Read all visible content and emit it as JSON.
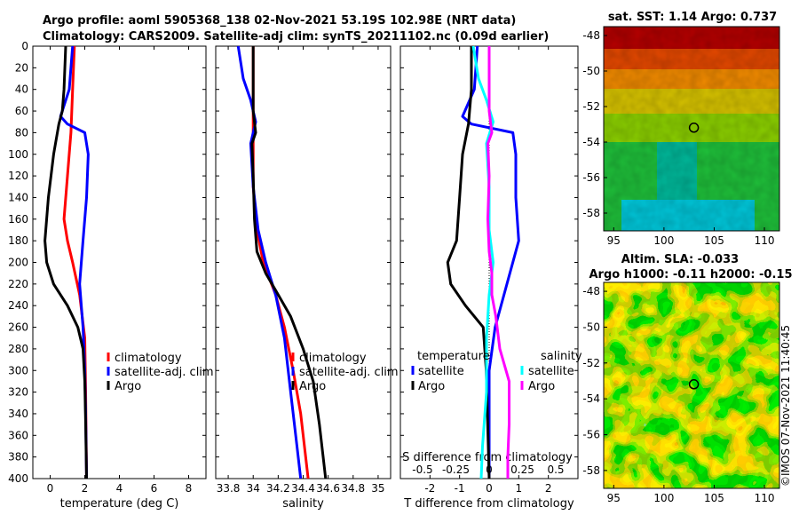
{
  "title": {
    "line1": "Argo profile: aoml 5905368_138 02-Nov-2021 53.19S 102.98E (NRT data)",
    "line2": "Climatology: CARS2009. Satellite-adj clim: synTS_20211102.nc (0.09d earlier)"
  },
  "colors": {
    "climatology": "#ff0000",
    "satellite": "#0000ff",
    "argo": "#000000",
    "salinity_diff": "#ff00ff",
    "salinity_satellite": "#00ffff"
  },
  "chart_data": [
    {
      "type": "line",
      "name": "temperature-profile",
      "xlabel": "temperature (deg C)",
      "ylabel": "",
      "xlim": [
        -1,
        9
      ],
      "ylim": [
        400,
        0
      ],
      "xticks": [
        0,
        2,
        4,
        6,
        8
      ],
      "xtick_labels": [
        "0",
        "2",
        "4",
        "6",
        "8"
      ],
      "yticks": [
        0,
        20,
        40,
        60,
        80,
        100,
        120,
        140,
        160,
        180,
        200,
        220,
        240,
        260,
        280,
        300,
        320,
        340,
        360,
        380,
        400
      ],
      "ytick_labels": [
        "0",
        "20",
        "40",
        "60",
        "80",
        "100",
        "120",
        "140",
        "160",
        "180",
        "200",
        "220",
        "240",
        "260",
        "280",
        "300",
        "320",
        "340",
        "360",
        "380",
        "400"
      ],
      "legend": [
        "climatology",
        "satellite-adj. clim",
        "Argo"
      ],
      "series": [
        {
          "name": "climatology",
          "color": "#ff0000",
          "points": [
            [
              1.4,
              0
            ],
            [
              1.3,
              40
            ],
            [
              1.2,
              80
            ],
            [
              1.0,
              120
            ],
            [
              0.8,
              160
            ],
            [
              1.0,
              180
            ],
            [
              1.3,
              200
            ],
            [
              1.7,
              230
            ],
            [
              2.0,
              270
            ],
            [
              2.05,
              320
            ],
            [
              2.1,
              400
            ]
          ]
        },
        {
          "name": "satellite-adj. clim",
          "color": "#0000ff",
          "points": [
            [
              1.3,
              0
            ],
            [
              1.1,
              40
            ],
            [
              0.6,
              65
            ],
            [
              1.0,
              72
            ],
            [
              2.0,
              80
            ],
            [
              2.2,
              100
            ],
            [
              2.1,
              140
            ],
            [
              1.9,
              180
            ],
            [
              1.7,
              220
            ],
            [
              1.9,
              260
            ],
            [
              2.0,
              300
            ],
            [
              2.05,
              340
            ],
            [
              2.1,
              400
            ]
          ]
        },
        {
          "name": "Argo",
          "color": "#000000",
          "points": [
            [
              0.9,
              0
            ],
            [
              0.8,
              40
            ],
            [
              0.7,
              60
            ],
            [
              0.5,
              72
            ],
            [
              0.2,
              100
            ],
            [
              -0.1,
              140
            ],
            [
              -0.3,
              180
            ],
            [
              -0.2,
              200
            ],
            [
              0.2,
              220
            ],
            [
              1.0,
              240
            ],
            [
              1.6,
              260
            ],
            [
              1.9,
              280
            ],
            [
              2.0,
              310
            ],
            [
              2.05,
              350
            ],
            [
              2.1,
              400
            ]
          ]
        }
      ]
    },
    {
      "type": "line",
      "name": "salinity-profile",
      "xlabel": "salinity",
      "ylabel": "",
      "xlim": [
        33.7,
        35.1
      ],
      "ylim": [
        400,
        0
      ],
      "xticks": [
        33.8,
        34.0,
        34.2,
        34.4,
        34.6,
        34.8,
        35.0
      ],
      "xtick_labels": [
        "33.8",
        "34",
        "34.2",
        "34.4",
        "34.6",
        "34.8",
        "35"
      ],
      "legend": [
        "climatology",
        "satellite-adj. clim",
        "Argo"
      ],
      "series": [
        {
          "name": "climatology",
          "color": "#ff0000",
          "points": [
            [
              34.0,
              0
            ],
            [
              34.0,
              80
            ],
            [
              34.0,
              130
            ],
            [
              34.03,
              170
            ],
            [
              34.08,
              200
            ],
            [
              34.18,
              230
            ],
            [
              34.25,
              260
            ],
            [
              34.32,
              300
            ],
            [
              34.38,
              340
            ],
            [
              34.42,
              380
            ],
            [
              34.44,
              400
            ]
          ]
        },
        {
          "name": "satellite-adj. clim",
          "color": "#0000ff",
          "points": [
            [
              33.88,
              0
            ],
            [
              33.92,
              30
            ],
            [
              33.98,
              50
            ],
            [
              34.02,
              70
            ],
            [
              33.98,
              90
            ],
            [
              34.0,
              130
            ],
            [
              34.04,
              170
            ],
            [
              34.1,
              200
            ],
            [
              34.18,
              230
            ],
            [
              34.25,
              270
            ],
            [
              34.3,
              320
            ],
            [
              34.35,
              370
            ],
            [
              34.38,
              400
            ]
          ]
        },
        {
          "name": "Argo",
          "color": "#000000",
          "points": [
            [
              34.0,
              0
            ],
            [
              34.0,
              60
            ],
            [
              34.02,
              80
            ],
            [
              33.99,
              90
            ],
            [
              34.0,
              120
            ],
            [
              34.01,
              160
            ],
            [
              34.03,
              190
            ],
            [
              34.1,
              210
            ],
            [
              34.2,
              230
            ],
            [
              34.3,
              250
            ],
            [
              34.4,
              280
            ],
            [
              34.48,
              310
            ],
            [
              34.53,
              350
            ],
            [
              34.56,
              380
            ],
            [
              34.58,
              400
            ]
          ]
        }
      ]
    },
    {
      "type": "line",
      "name": "difference-profile",
      "xlabel": "T difference from climatology",
      "xlabel_top": "S difference from climatology",
      "xlim": [
        -3,
        3
      ],
      "ylim": [
        400,
        0
      ],
      "xticks": [
        -2,
        -1,
        0,
        1,
        2
      ],
      "xtick_labels": [
        "-2",
        "-1",
        "0",
        "1",
        "2"
      ],
      "sticks": [
        -0.5,
        -0.25,
        0,
        0.25,
        0.5
      ],
      "stick_labels": [
        "-0.5",
        "-0.25",
        "0",
        "0.25",
        "0.5"
      ],
      "legend_temperature_title": "temperature",
      "legend_salinity_title": "salinity",
      "legend_temperature": [
        "satellite",
        "Argo"
      ],
      "legend_salinity": [
        "satellite",
        "Argo"
      ],
      "series": [
        {
          "name": "T satellite",
          "color": "#0000ff",
          "points": [
            [
              -0.4,
              0
            ],
            [
              -0.5,
              40
            ],
            [
              -0.9,
              65
            ],
            [
              -0.6,
              72
            ],
            [
              0.8,
              80
            ],
            [
              0.9,
              100
            ],
            [
              0.9,
              140
            ],
            [
              1.0,
              180
            ],
            [
              0.6,
              220
            ],
            [
              0.2,
              260
            ],
            [
              0.0,
              300
            ],
            [
              0.0,
              400
            ]
          ]
        },
        {
          "name": "T Argo",
          "color": "#000000",
          "points": [
            [
              -0.6,
              0
            ],
            [
              -0.6,
              40
            ],
            [
              -0.7,
              72
            ],
            [
              -0.9,
              100
            ],
            [
              -1.0,
              140
            ],
            [
              -1.1,
              180
            ],
            [
              -1.4,
              200
            ],
            [
              -1.3,
              220
            ],
            [
              -0.8,
              240
            ],
            [
              -0.2,
              260
            ],
            [
              -0.1,
              300
            ],
            [
              0.0,
              400
            ]
          ]
        },
        {
          "name": "S satellite",
          "color": "#00ffff",
          "points": [
            [
              -0.12,
              0
            ],
            [
              -0.08,
              30
            ],
            [
              -0.02,
              50
            ],
            [
              0.03,
              70
            ],
            [
              -0.02,
              90
            ],
            [
              0.0,
              130
            ],
            [
              0.0,
              170
            ],
            [
              0.03,
              200
            ],
            [
              0.0,
              230
            ],
            [
              -0.02,
              270
            ],
            [
              -0.02,
              320
            ],
            [
              -0.05,
              370
            ],
            [
              -0.06,
              400
            ]
          ]
        },
        {
          "name": "S Argo",
          "color": "#ff00ff",
          "points": [
            [
              0.0,
              0
            ],
            [
              0.0,
              60
            ],
            [
              0.02,
              80
            ],
            [
              -0.01,
              90
            ],
            [
              0.0,
              120
            ],
            [
              -0.01,
              160
            ],
            [
              0.0,
              190
            ],
            [
              0.02,
              210
            ],
            [
              0.02,
              230
            ],
            [
              0.05,
              250
            ],
            [
              0.08,
              280
            ],
            [
              0.15,
              310
            ],
            [
              0.15,
              350
            ],
            [
              0.14,
              380
            ],
            [
              0.14,
              400
            ]
          ]
        }
      ]
    },
    {
      "type": "heatmap",
      "name": "sst-map",
      "title": "sat. SST: 1.14 Argo: 0.737",
      "xlim": [
        94,
        111.5
      ],
      "ylim": [
        -59,
        -47.5
      ],
      "xticks": [
        95,
        100,
        105,
        110
      ],
      "xtick_labels": [
        "95",
        "100",
        "105",
        "110"
      ],
      "yticks": [
        -48,
        -50,
        -52,
        -54,
        -56,
        -58
      ],
      "ytick_labels": [
        "-48",
        "-50",
        "-52",
        "-54",
        "-56",
        "-58"
      ],
      "marker": [
        102.98,
        -53.19
      ]
    },
    {
      "type": "heatmap",
      "name": "sla-map",
      "title_line1": "Altim. SLA: -0.033",
      "title_line2": "Argo h1000: -0.11 h2000: -0.15",
      "xlim": [
        94,
        111.5
      ],
      "ylim": [
        -59,
        -47.5
      ],
      "xticks": [
        95,
        100,
        105,
        110
      ],
      "xtick_labels": [
        "95",
        "100",
        "105",
        "110"
      ],
      "yticks": [
        -48,
        -50,
        -52,
        -54,
        -56,
        -58
      ],
      "ytick_labels": [
        "-48",
        "-50",
        "-52",
        "-54",
        "-56",
        "-58"
      ],
      "marker": [
        102.98,
        -53.19
      ]
    }
  ],
  "watermark": "©IMOS 07-Nov-2021 11:40:45"
}
